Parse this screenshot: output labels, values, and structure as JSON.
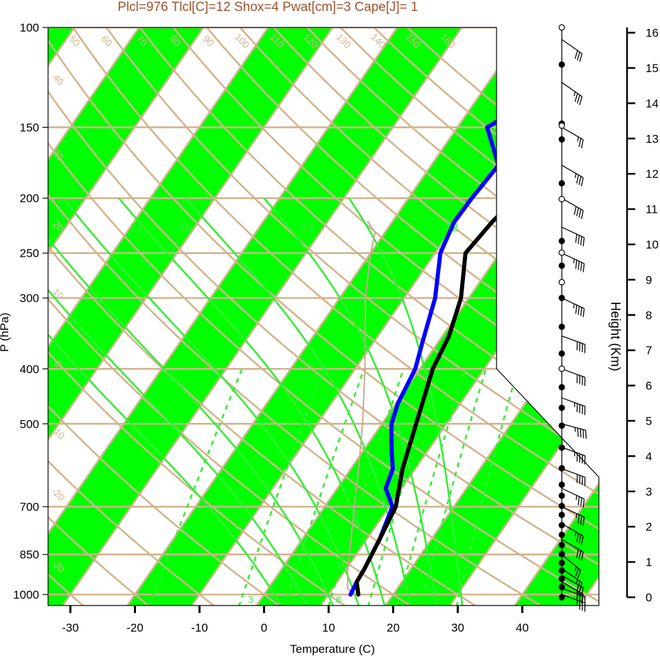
{
  "header_text": "Plcl=976 Tlcl[C]=12 Shox=4 Pwat[cm]=3 Cape[J]= 1",
  "colors": {
    "band": "#00ff00",
    "reference": "#d2b48c",
    "temperature": "#000000",
    "dewpoint": "#0000ff",
    "parcel": "#c8a98b",
    "moist_adiabat": "#33ee33",
    "mixing_ratio": "#33ee33",
    "header": "#a0522d"
  },
  "chart_data": {
    "type": "line",
    "title": "",
    "xlabel": "Temperature (C)",
    "ylabel": "P (hPa)",
    "y2label": "Height (Km)",
    "xlim": [
      -34,
      51
    ],
    "ylim": [
      1035,
      100
    ],
    "y_scale": "log",
    "x_ticks": [
      "-30",
      "-20",
      "-10",
      "0",
      "10",
      "20",
      "30",
      "40"
    ],
    "y_ticks": [
      "100",
      "150",
      "200",
      "250",
      "300",
      "400",
      "500",
      "700",
      "850",
      "1000"
    ],
    "height_ticks": [
      "0",
      "1",
      "2",
      "3",
      "4",
      "5",
      "6",
      "7",
      "8",
      "9",
      "10",
      "11",
      "12",
      "13",
      "14",
      "15",
      "16"
    ],
    "isotherm_labels": [
      "-40",
      "-30",
      "-20",
      "-10",
      "0",
      "10",
      "20",
      "30"
    ],
    "theta_labels": [
      "50",
      "60",
      "70",
      "80",
      "90",
      "100",
      "110",
      "120",
      "130",
      "140",
      "150",
      "160"
    ],
    "theta_side_labels": [
      "40",
      "30",
      "20",
      "10",
      "0",
      "-10",
      "-20",
      "-30"
    ],
    "moist_adiabat_labels": [
      "12",
      "16",
      "24",
      "32"
    ],
    "mixing_ratio_labels": [
      "3",
      "8"
    ],
    "series": [
      {
        "name": "",
        "role": "temperature",
        "pressure": [
          1000,
          950,
          900,
          850,
          800,
          700,
          600,
          500,
          400,
          350,
          300,
          250,
          220,
          200,
          150,
          100
        ],
        "values": [
          14.6,
          13,
          12.8,
          12.4,
          12,
          11,
          8,
          5.3,
          2,
          1,
          -1.2,
          -5.3,
          -4.5,
          -3.3,
          1.5,
          7.8
        ]
      },
      {
        "name": "",
        "role": "dewpoint",
        "pressure": [
          1000,
          950,
          900,
          850,
          800,
          700,
          650,
          600,
          560,
          520,
          500,
          460,
          400,
          360,
          300,
          250,
          220,
          200,
          175,
          150,
          100
        ],
        "values": [
          13.4,
          13,
          12.8,
          12.4,
          12,
          10.5,
          7.5,
          6.5,
          4.5,
          2.5,
          1.5,
          0.3,
          -0.7,
          -2.4,
          -5.2,
          -9.2,
          -10.4,
          -10.2,
          -9.6,
          -15.4,
          0
        ]
      },
      {
        "name": "",
        "role": "parcel",
        "pressure": [
          1000,
          976,
          900,
          800,
          700,
          600,
          500,
          400,
          300,
          250,
          230,
          220
        ],
        "values": [
          14,
          12.3,
          10.2,
          7.6,
          4.6,
          1.2,
          -3,
          -8.5,
          -16,
          -20,
          -21.5,
          -23.8
        ]
      }
    ],
    "wind_barbs_note": "wind barb column on right",
    "wind_barbs": [
      {
        "pressure": 1000,
        "dir": 250,
        "speed": 35
      },
      {
        "pressure": 975,
        "dir": 250,
        "speed": 35
      },
      {
        "pressure": 950,
        "dir": 240,
        "speed": 30
      },
      {
        "pressure": 925,
        "dir": 240,
        "speed": 30
      },
      {
        "pressure": 900,
        "dir": 235,
        "speed": 25
      },
      {
        "pressure": 850,
        "dir": 230,
        "speed": 25
      },
      {
        "pressure": 800,
        "dir": 240,
        "speed": 30
      },
      {
        "pressure": 750,
        "dir": 240,
        "speed": 35
      },
      {
        "pressure": 700,
        "dir": 245,
        "speed": 35
      },
      {
        "pressure": 650,
        "dir": 245,
        "speed": 35
      },
      {
        "pressure": 600,
        "dir": 250,
        "speed": 40
      },
      {
        "pressure": 550,
        "dir": 250,
        "speed": 45
      },
      {
        "pressure": 500,
        "dir": 255,
        "speed": 45
      },
      {
        "pressure": 450,
        "dir": 250,
        "speed": 45
      },
      {
        "pressure": 400,
        "dir": 250,
        "speed": 40
      },
      {
        "pressure": 350,
        "dir": 250,
        "speed": 40
      },
      {
        "pressure": 300,
        "dir": 245,
        "speed": 45
      },
      {
        "pressure": 250,
        "dir": 245,
        "speed": 45
      },
      {
        "pressure": 225,
        "dir": 245,
        "speed": 40
      },
      {
        "pressure": 200,
        "dir": 240,
        "speed": 40
      },
      {
        "pressure": 175,
        "dir": 240,
        "speed": 35
      },
      {
        "pressure": 150,
        "dir": 240,
        "speed": 25
      },
      {
        "pressure": 125,
        "dir": 235,
        "speed": 35
      },
      {
        "pressure": 105,
        "dir": 235,
        "speed": 30
      }
    ]
  }
}
